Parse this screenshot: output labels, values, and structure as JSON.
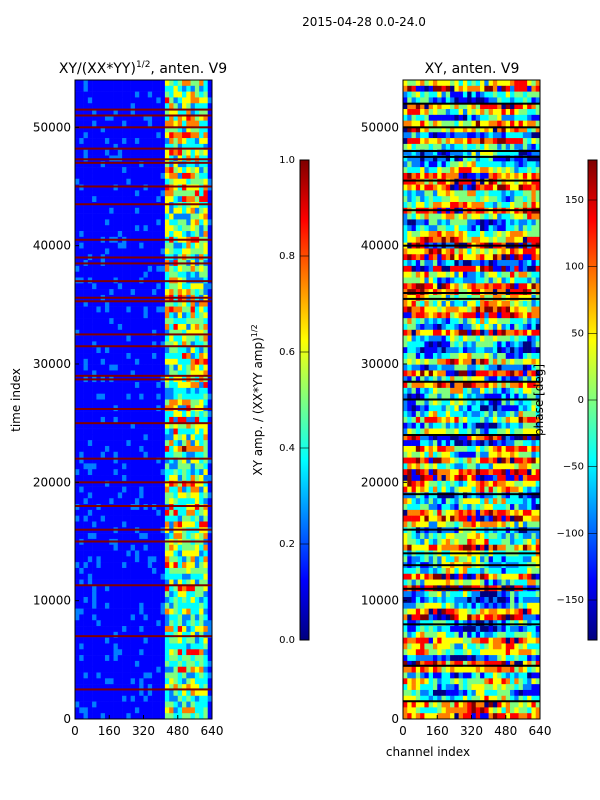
{
  "figure": {
    "suptitle": "2015-04-28 0.0-24.0"
  },
  "colors": {
    "jet": [
      "#00007f",
      "#0000ff",
      "#007fff",
      "#00ffff",
      "#7fff7f",
      "#ffff00",
      "#ff7f00",
      "#ff0000",
      "#7f0000"
    ]
  },
  "chart_data": [
    {
      "type": "heatmap",
      "title": "XY/(XX*YY)",
      "title_sup": "1/2",
      "title_suffix": ", anten. V9",
      "xlabel": "",
      "ylabel": "time index",
      "xlim": [
        0,
        640
      ],
      "ylim": [
        0,
        54000
      ],
      "xticks": [
        0,
        160,
        320,
        480,
        640
      ],
      "yticks": [
        0,
        10000,
        20000,
        30000,
        40000,
        50000
      ],
      "colorbar": {
        "label": "XY amp. / (XX*YY amp)",
        "label_sup": "1/2",
        "range": [
          0.0,
          1.0
        ],
        "ticks": [
          0.0,
          0.2,
          0.4,
          0.6,
          0.8,
          1.0
        ],
        "tick_labels": [
          "0.0",
          "0.2",
          "0.4",
          "0.6",
          "0.8",
          "1.0"
        ]
      },
      "flagged_rows_value": 1.0,
      "flagged_time_indices": [
        2500,
        7000,
        11300,
        15000,
        16000,
        18000,
        20000,
        22000,
        25000,
        26200,
        28700,
        29000,
        31500,
        32500,
        35300,
        35600,
        37000,
        38500,
        39000,
        40500,
        43500,
        45000,
        47000,
        47300,
        48200,
        50000,
        51000,
        51500
      ]
    },
    {
      "type": "heatmap",
      "title": "XY, anten. V9",
      "title_sup": "",
      "title_suffix": "",
      "xlabel": "channel index",
      "ylabel": "",
      "xlim": [
        0,
        640
      ],
      "ylim": [
        0,
        54000
      ],
      "xticks": [
        0,
        160,
        320,
        480,
        640
      ],
      "yticks": [
        0,
        10000,
        20000,
        30000,
        40000,
        50000
      ],
      "colorbar": {
        "label": "phase [deg]",
        "label_sup": "",
        "range": [
          -180,
          180
        ],
        "ticks": [
          -150,
          -100,
          -50,
          0,
          50,
          100,
          150
        ],
        "tick_labels": [
          "−150",
          "−100",
          "−50",
          "0",
          "50",
          "100",
          "150"
        ]
      },
      "flagged_rows_value": null,
      "flagged_time_indices": [
        1500,
        4500,
        8000,
        11000,
        13000,
        14000,
        16000,
        19000,
        24000,
        27000,
        28500,
        35500,
        36000,
        40000,
        43000,
        45500,
        47500,
        48000,
        50000,
        52000
      ]
    }
  ]
}
